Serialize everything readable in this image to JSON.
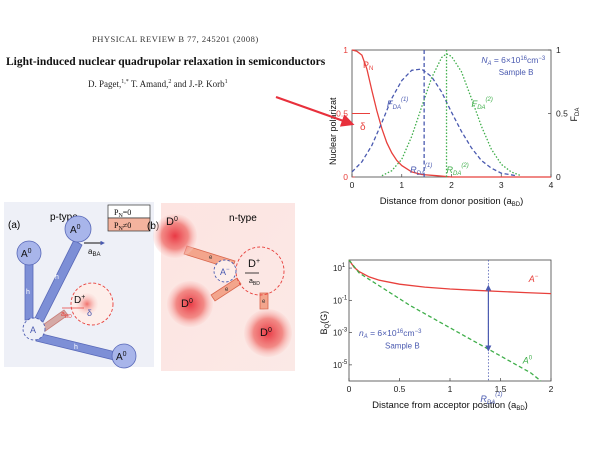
{
  "paper": {
    "journal_header": "PHYSICAL REVIEW B 77, 245201 (2008)",
    "title": "Light-induced nuclear quadrupolar relaxation in semiconductors",
    "authors": "D. Paget,1,* T. Amand,2 and J.-P. Korb1"
  },
  "colors": {
    "red": "#e8403c",
    "blue": "#4a5ab0",
    "green": "#3fae4a",
    "node_blue": "#7d8fd6"
  },
  "chart_data": [
    {
      "type": "line",
      "panel": "top-right",
      "xlabel": "Distance from donor position (a",
      "xlabel_sub": "BD",
      "ylabel_left": "Nuclear polarizat",
      "ylabel_right": "F",
      "ylabel_right_sub": "DA",
      "xlim": [
        0,
        4
      ],
      "xticks": [
        "0",
        "1",
        "2",
        "3",
        "4"
      ],
      "yticks_left": [
        "0",
        "0.5",
        "1"
      ],
      "yticks_right": [
        "0",
        "0.5",
        "1"
      ],
      "annotation_density": "N",
      "annotation_density_sub": "A",
      "annotation_density_value": "= 6×10",
      "annotation_density_exp": "16",
      "annotation_density_unit": "cm",
      "annotation_density_unit_exp": "−3",
      "annotation_sample": "Sample B",
      "series": [
        {
          "name": "P",
          "name_sub": "N",
          "color": "#e8403c",
          "dash": "solid",
          "x": [
            0,
            0.1,
            0.2,
            0.3,
            0.4,
            0.5,
            0.6,
            0.7,
            0.8,
            0.9,
            1.0,
            1.2,
            1.4,
            1.7,
            2.0,
            2.5,
            3.0,
            3.5,
            4.0
          ],
          "y": [
            1.0,
            0.99,
            0.96,
            0.85,
            0.68,
            0.52,
            0.38,
            0.27,
            0.19,
            0.13,
            0.09,
            0.04,
            0.02,
            0.01,
            0.0,
            0.0,
            0.0,
            0.0,
            0.0
          ]
        },
        {
          "name": "F",
          "name_sub": "DA",
          "name_sup": "(1)",
          "color": "#4a5ab0",
          "dash": "dashed",
          "x": [
            0,
            0.2,
            0.4,
            0.6,
            0.8,
            1.0,
            1.2,
            1.4,
            1.6,
            1.8,
            2.0,
            2.2,
            2.4,
            2.6,
            2.8,
            3.0,
            3.3
          ],
          "y": [
            0.04,
            0.12,
            0.25,
            0.43,
            0.62,
            0.76,
            0.84,
            0.85,
            0.79,
            0.67,
            0.51,
            0.36,
            0.23,
            0.13,
            0.07,
            0.03,
            0.01
          ]
        },
        {
          "name": "F",
          "name_sub": "DA",
          "name_sup": "(2)",
          "color": "#3fae4a",
          "dash": "dotted",
          "x": [
            0.6,
            0.8,
            1.0,
            1.2,
            1.4,
            1.6,
            1.8,
            1.9,
            2.0,
            2.2,
            2.4,
            2.6,
            2.8,
            3.0,
            3.2,
            3.4
          ],
          "y": [
            0.01,
            0.05,
            0.14,
            0.32,
            0.55,
            0.78,
            0.94,
            0.97,
            0.95,
            0.83,
            0.62,
            0.4,
            0.22,
            0.1,
            0.04,
            0.01
          ]
        }
      ],
      "vlines": [
        {
          "x": 1.45,
          "color": "#4a5ab0",
          "label": "R",
          "label_sub": "DA",
          "label_sup": "(1)"
        },
        {
          "x": 1.9,
          "color": "#3fae4a",
          "label": "R",
          "label_sub": "DA",
          "label_sup": "(2)"
        }
      ],
      "delta_label": "δ"
    },
    {
      "type": "line",
      "panel": "bottom-right",
      "xlabel": "Distance from acceptor position (a",
      "xlabel_sub": "BD",
      "ylabel": "B",
      "ylabel_sub": "Q",
      "ylabel_suffix": "(G)",
      "xlim": [
        0,
        2
      ],
      "ylog": true,
      "ylim_exp": [
        -6,
        1.5
      ],
      "xticks": [
        "0",
        "0.5",
        "1",
        "1.5",
        "2"
      ],
      "yticks": [
        {
          "base": "10",
          "exp": "1"
        },
        {
          "base": "10",
          "exp": "-1"
        },
        {
          "base": "10",
          "exp": "-3"
        },
        {
          "base": "10",
          "exp": "-5"
        }
      ],
      "annotation_density": "n",
      "annotation_density_sub": "A",
      "annotation_density_value": "= 6×10",
      "annotation_density_exp": "16",
      "annotation_density_unit": "cm",
      "annotation_density_unit_exp": "−3",
      "annotation_sample": "Sample B",
      "series": [
        {
          "name": "A",
          "name_sup": "−",
          "color": "#e8403c",
          "dash": "solid",
          "x": [
            0,
            0.05,
            0.1,
            0.2,
            0.3,
            0.5,
            0.75,
            1.0,
            1.25,
            1.5,
            1.75,
            2.0
          ],
          "log10y": [
            1.5,
            1.05,
            0.78,
            0.45,
            0.25,
            0.0,
            -0.18,
            -0.3,
            -0.38,
            -0.45,
            -0.52,
            -0.58
          ]
        },
        {
          "name": "A",
          "name_sup": "0",
          "color": "#3fae4a",
          "dash": "dashed",
          "x": [
            0,
            0.1,
            0.2,
            0.4,
            0.6,
            0.8,
            1.0,
            1.2,
            1.4,
            1.6,
            1.8,
            1.9
          ],
          "log10y": [
            1.5,
            0.7,
            0.3,
            -0.5,
            -1.3,
            -2.0,
            -2.7,
            -3.4,
            -4.1,
            -4.8,
            -5.5,
            -6.0
          ]
        }
      ],
      "vline": {
        "x": 1.38,
        "color": "#4a5ab0",
        "label": "R",
        "label_sub": "DA",
        "label_sup": "(1)"
      }
    }
  ],
  "diagram_a": {
    "panel_label": "(a)",
    "title": "p-type",
    "legend": [
      {
        "text": "P",
        "sub": "N",
        "rest": "=0",
        "fill": "#ffffff"
      },
      {
        "text": "P",
        "sub": "N",
        "rest": "≠0",
        "fill": "#f4b39e"
      }
    ],
    "nodes": [
      "A",
      "0"
    ],
    "node_center": "A",
    "donor": "D",
    "donor_charge": "+",
    "a_ba": "a",
    "a_ba_sub": "BA",
    "a_bd": "a",
    "a_bd_sub": "BD",
    "delta": "δ",
    "arrow_label": "h"
  },
  "diagram_b": {
    "panel_label": "(b)",
    "title": "n-type",
    "donor_node": "D",
    "donor_node_sup": "0",
    "center_donor": "D",
    "center_donor_charge": "+",
    "acceptor": "A",
    "acceptor_charge": "−",
    "a_bd": "a",
    "a_bd_sub": "BD",
    "arrow_label": "e"
  }
}
